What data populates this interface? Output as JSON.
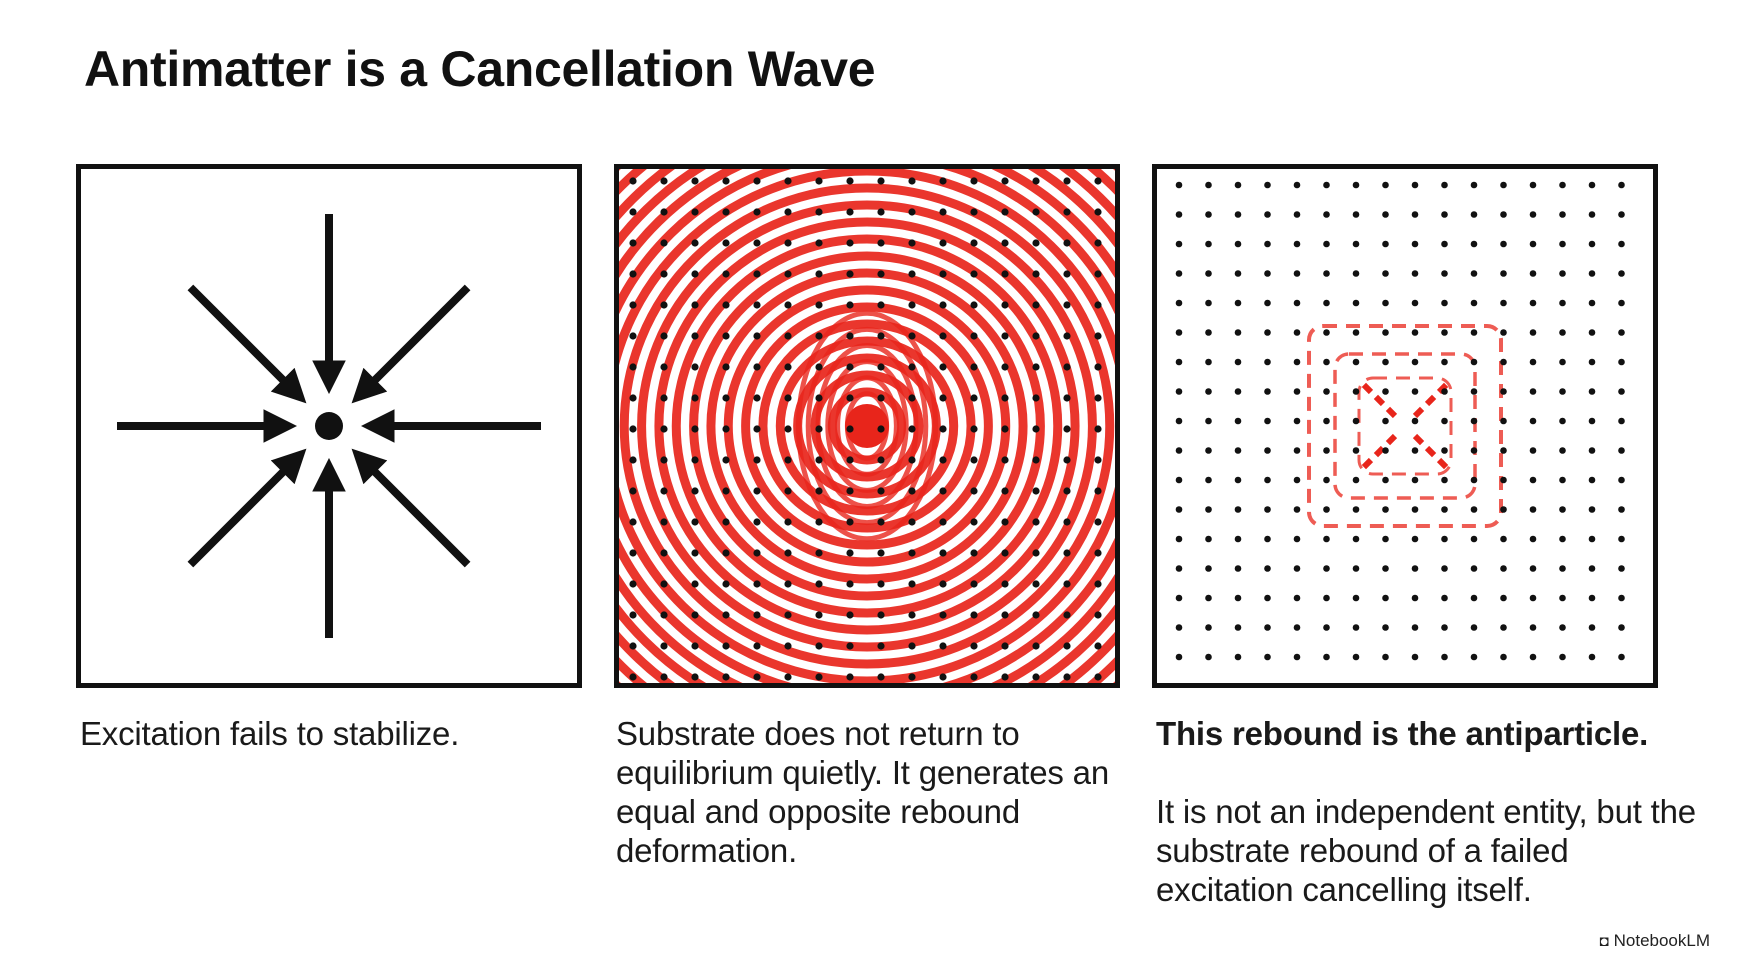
{
  "title": "Antimatter is a Cancellation Wave",
  "panels": [
    {
      "caption": "Excitation fails to stabilize.",
      "icon": "inward-converging-arrows"
    },
    {
      "caption": "Substrate does not return to equilibrium quietly. It generates an equal and opposite rebound deformation.",
      "icon": "concentric-red-wave-rings-on-dot-grid"
    },
    {
      "caption_bold": "This rebound is the antiparticle.",
      "caption": "It is not an independent entity, but the substrate rebound of a failed excitation cancelling itself.",
      "icon": "faint-red-dashed-residue-on-dot-grid"
    }
  ],
  "brand": {
    "label": "NotebookLM",
    "icon": "notebooklm-logo-icon"
  },
  "colors": {
    "ink": "#111111",
    "accent_red": "#e8251b",
    "background": "#ffffff"
  }
}
